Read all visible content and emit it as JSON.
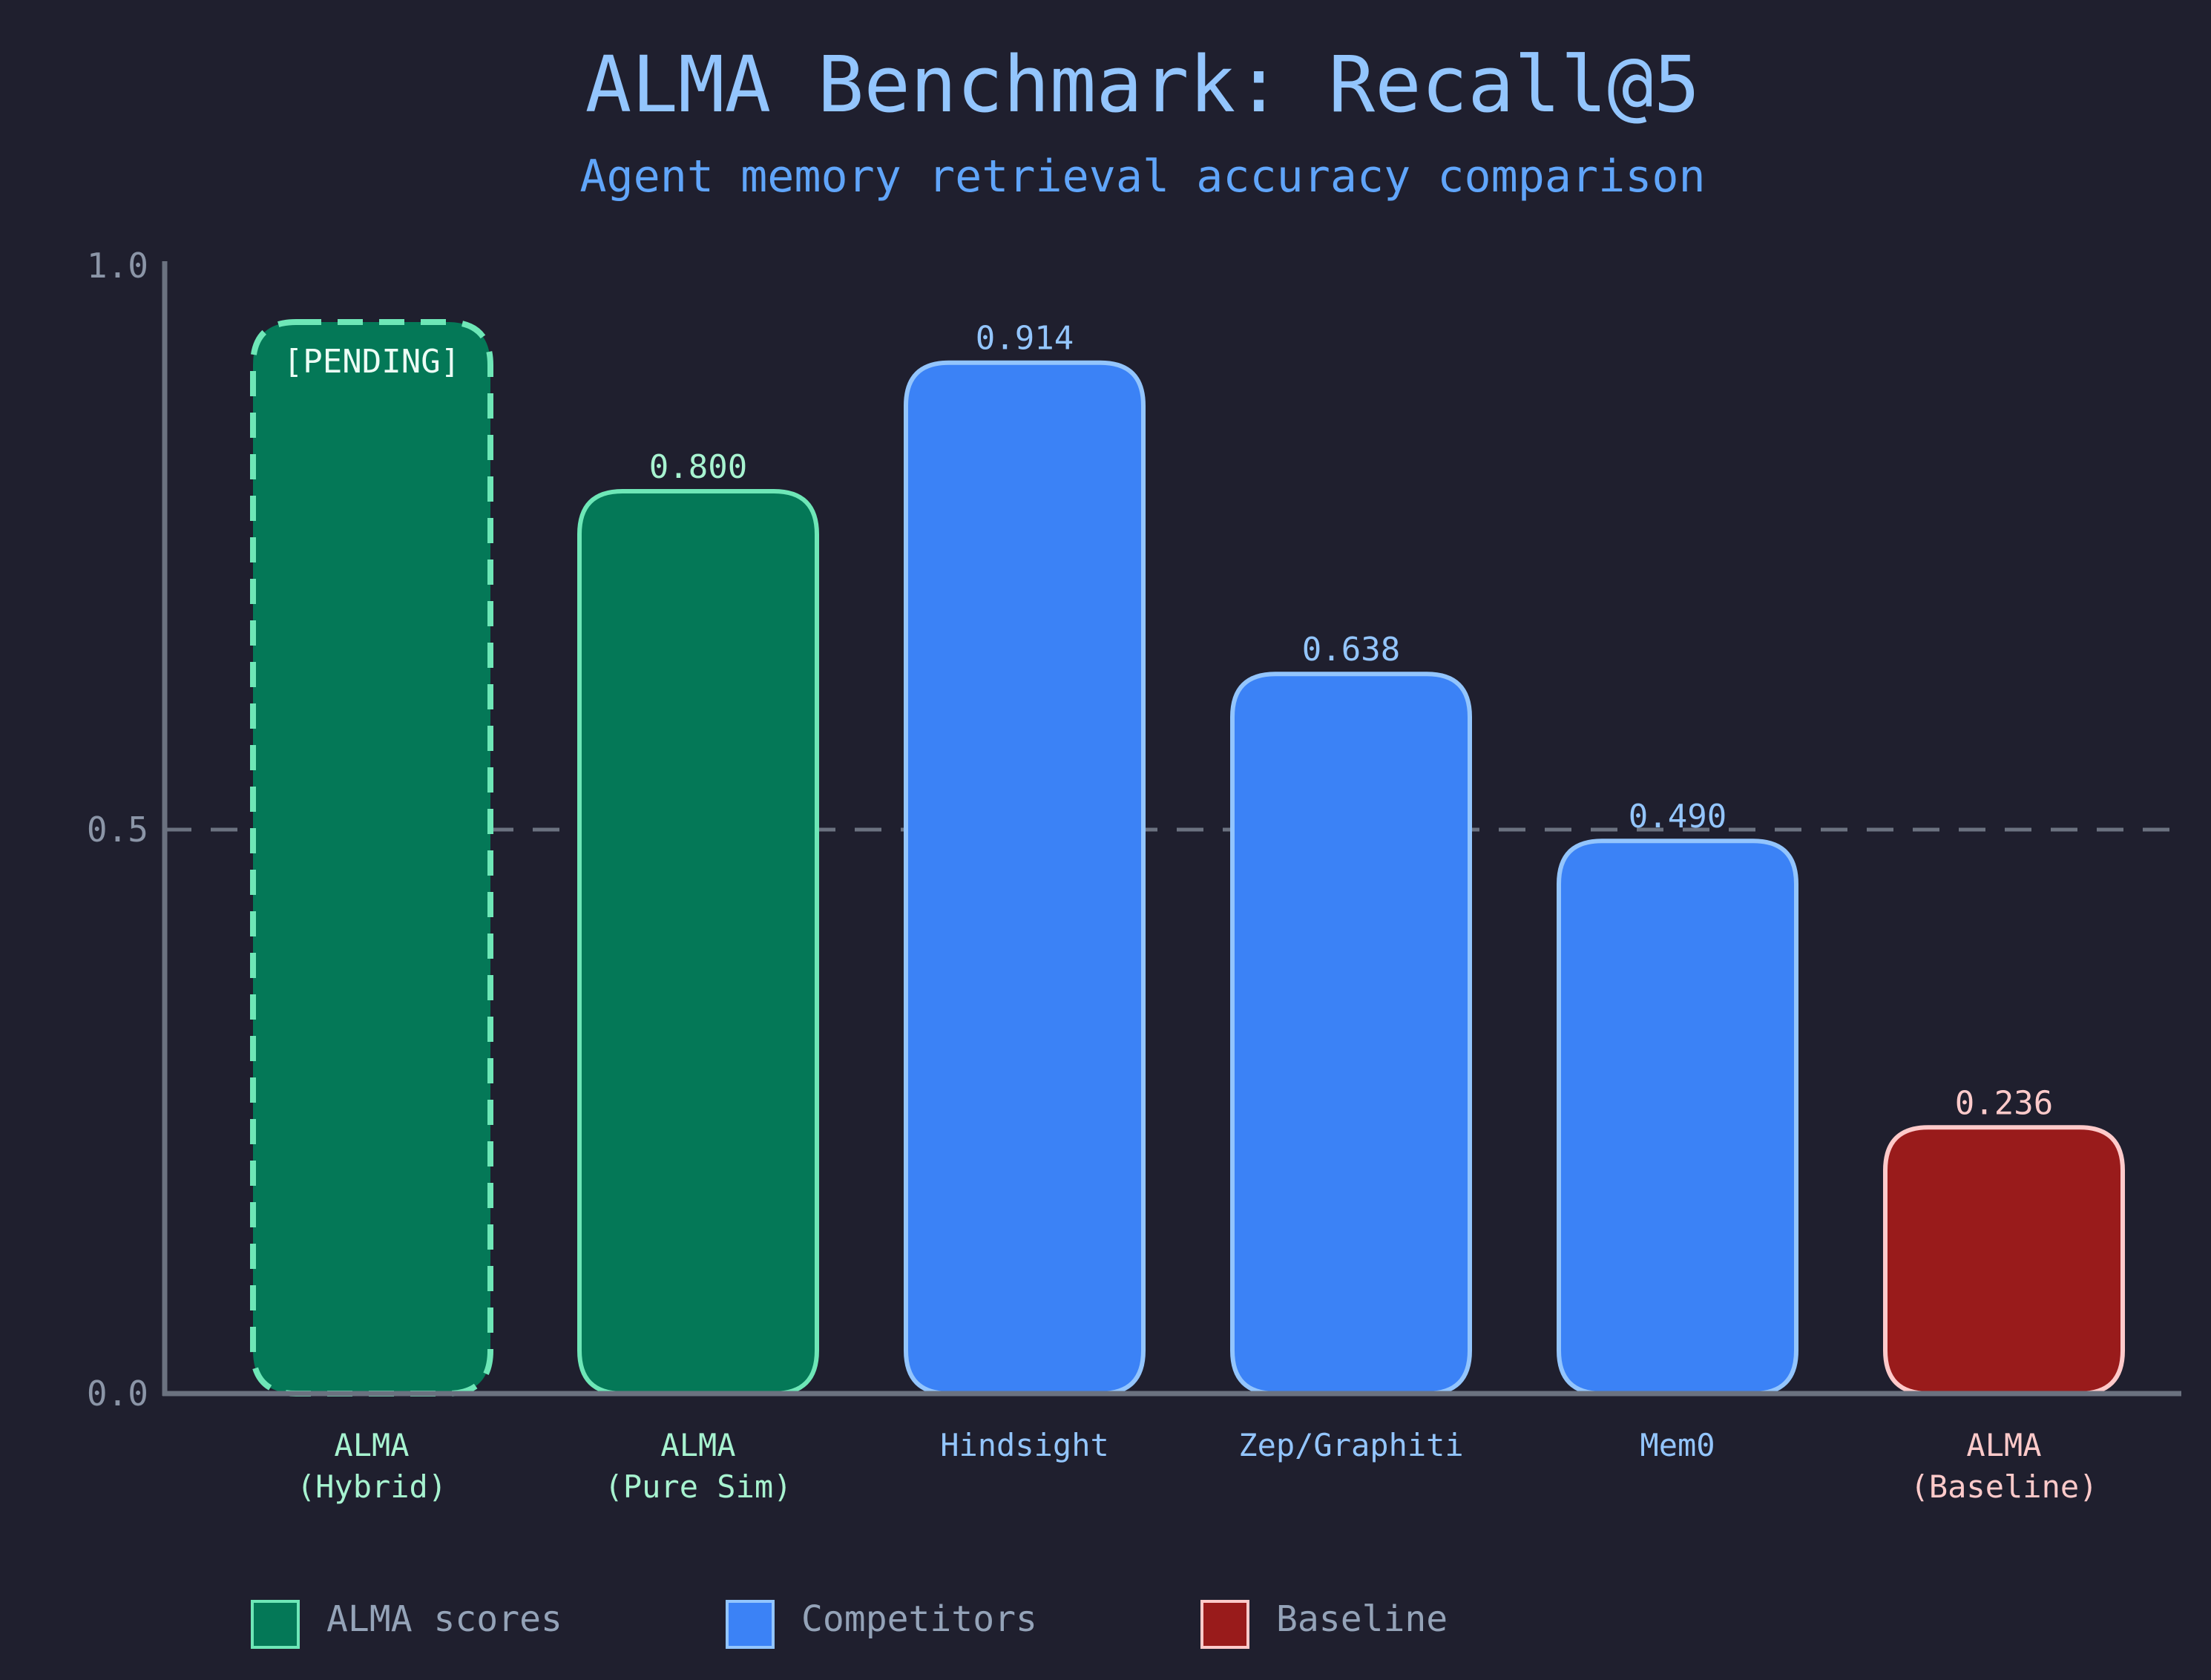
{
  "chart_data": {
    "type": "bar",
    "title": "ALMA Benchmark: Recall@5",
    "subtitle": "Agent memory retrieval accuracy comparison",
    "xlabel": "",
    "ylabel": "",
    "ylim": [
      0,
      1.0
    ],
    "yticks": [
      "0.0",
      "0.5",
      "1.0"
    ],
    "reference_line": 0.5,
    "categories": [
      {
        "line1": "ALMA",
        "line2": "(Hybrid)",
        "group": "alma"
      },
      {
        "line1": "ALMA",
        "line2": "(Pure Sim)",
        "group": "alma"
      },
      {
        "line1": "Hindsight",
        "line2": "",
        "group": "competitor"
      },
      {
        "line1": "Zep/Graphiti",
        "line2": "",
        "group": "competitor"
      },
      {
        "line1": "Mem0",
        "line2": "",
        "group": "competitor"
      },
      {
        "line1": "ALMA",
        "line2": "(Baseline)",
        "group": "baseline"
      }
    ],
    "values": [
      0.95,
      0.8,
      0.914,
      0.638,
      0.49,
      0.236
    ],
    "value_labels": [
      "[PENDING]",
      "0.800",
      "0.914",
      "0.638",
      "0.490",
      "0.236"
    ],
    "pending": [
      true,
      false,
      false,
      false,
      false,
      false
    ],
    "legend": [
      {
        "label": "ALMA scores",
        "group": "alma"
      },
      {
        "label": "Competitors",
        "group": "competitor"
      },
      {
        "label": "Baseline",
        "group": "baseline"
      }
    ],
    "legend_position": "bottom",
    "colors": {
      "alma": {
        "fill": "#047857",
        "stroke": "#6ee7b7",
        "text": "#a7f3d0"
      },
      "competitor": {
        "fill": "#3b82f6",
        "stroke": "#93c5fd",
        "text": "#93c5fd"
      },
      "baseline": {
        "fill": "#991b1b",
        "stroke": "#fecaca",
        "text": "#fecaca"
      },
      "axis": "#6b7280",
      "background": "#1f1f2e"
    }
  }
}
